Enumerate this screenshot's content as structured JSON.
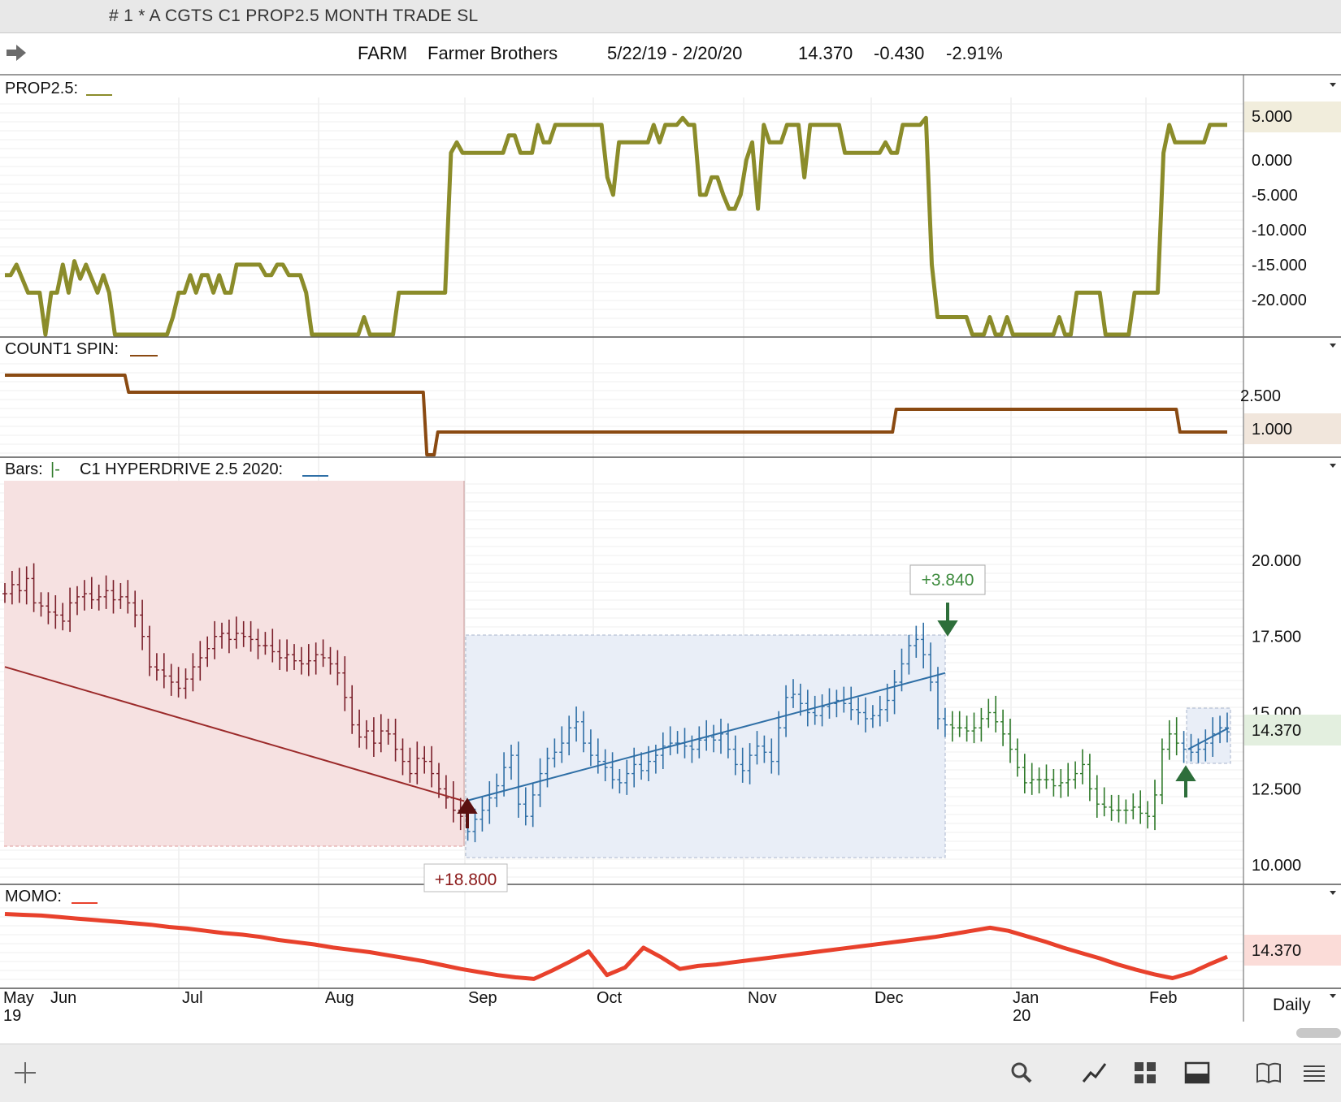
{
  "window": {
    "title": "# 1 * A CGTS  C1 PROP2.5 MONTH TRADE SL"
  },
  "header": {
    "symbol": "FARM",
    "name": "Farmer Brothers",
    "date_range": "5/22/19 - 2/20/20",
    "last": "14.370",
    "change": "-0.430",
    "pct_change": "-2.91%",
    "nav_icon": "right-arrow-icon"
  },
  "colors": {
    "prop": "#8b8c2a",
    "count": "#8a4a12",
    "bars_short": "#7a1f2a",
    "bars_long": "#2f6fa6",
    "bars_flat": "#2f7a2a",
    "momo": "#e8412c",
    "short_zone": "#f6e1e1",
    "long_zone": "#e9eef7"
  },
  "panels": {
    "prop": {
      "label": "PROP2.5:",
      "ticks": [
        "5.000",
        "0.000",
        "-5.000",
        "-10.000",
        "-15.000",
        "-20.000"
      ],
      "last_badge": "5.000"
    },
    "count": {
      "label": "COUNT1 SPIN:",
      "ticks": [
        "2.500"
      ],
      "last_badge": "1.000"
    },
    "bars": {
      "label": "Bars:",
      "label2": "C1 HYPERDRIVE 2.5 2020:",
      "ticks": [
        "20.000",
        "17.500",
        "15.000",
        "12.500",
        "10.000"
      ],
      "last_badge": "14.370",
      "annot_short": "+18.800",
      "annot_long": "+3.840"
    },
    "momo": {
      "label": "MOMO:",
      "last_badge": "14.370"
    }
  },
  "xaxis": {
    "months": [
      "May",
      "Jun",
      "Jul",
      "Aug",
      "Sep",
      "Oct",
      "Nov",
      "Dec",
      "Jan",
      "Feb"
    ],
    "years": [
      "19",
      "20"
    ],
    "period": "Daily"
  },
  "chart_data": [
    {
      "type": "line",
      "title": "PROP2.5",
      "ylim": [
        -25,
        8
      ],
      "x_start": "2019-05-22",
      "x_end": "2020-02-20",
      "series": [
        {
          "values": [
            -16.5,
            -16.5,
            -15,
            -17,
            -19,
            -19,
            -19,
            -25,
            -19,
            -19,
            -15,
            -19,
            -14.5,
            -17,
            -15,
            -17,
            -19,
            -16.5,
            -19,
            -25,
            -25,
            -25,
            -25,
            -25,
            -25,
            -25,
            -25,
            -25,
            -25,
            -22.5,
            -19,
            -19,
            -16.5,
            -19,
            -16.5,
            -16.5,
            -19,
            -16.5,
            -19,
            -19,
            -15,
            -15,
            -15,
            -15,
            -15,
            -16.5,
            -16.5,
            -15,
            -15,
            -16.5,
            -16.5,
            -16.5,
            -19,
            -25,
            -25,
            -25,
            -25,
            -25,
            -25,
            -25,
            -25,
            -25,
            -22.5,
            -25,
            -25,
            -25,
            -25,
            -25,
            -19,
            -19,
            -19,
            -19,
            -19,
            -19,
            -19,
            -19,
            -19,
            1,
            2.5,
            1,
            1,
            1,
            1,
            1,
            1,
            1,
            1,
            3.5,
            3.5,
            1,
            1,
            1,
            5,
            2.5,
            2.5,
            5,
            5,
            5,
            5,
            5,
            5,
            5,
            5,
            5,
            -2.5,
            -5,
            2.5,
            2.5,
            2.5,
            2.5,
            2.5,
            2.5,
            5,
            2.5,
            5,
            5,
            5,
            6,
            5,
            5,
            -5,
            -5,
            -2.5,
            -2.5,
            -5,
            -7,
            -7,
            -5,
            0,
            2.5,
            -7,
            5,
            2.5,
            2.5,
            2.5,
            5,
            5,
            5,
            -2.5,
            5,
            5,
            5,
            5,
            5,
            5,
            1,
            1,
            1,
            1,
            1,
            1,
            1,
            2.5,
            1,
            1,
            5,
            5,
            5,
            5,
            6,
            -15,
            -22.5,
            -22.5,
            -22.5,
            -22.5,
            -22.5,
            -22.5,
            -25,
            -25,
            -25,
            -22.5,
            -25,
            -25,
            -22.5,
            -25,
            -25,
            -25,
            -25,
            -25,
            -25,
            -25,
            -25,
            -22.5,
            -25,
            -25,
            -19,
            -19,
            -19,
            -19,
            -19,
            -25,
            -25,
            -25,
            -25,
            -25,
            -19,
            -19,
            -19,
            -19,
            -19,
            1,
            5,
            2.5,
            2.5,
            2.5,
            2.5,
            2.5,
            2.5,
            5,
            5,
            5,
            5
          ]
        }
      ]
    },
    {
      "type": "line",
      "title": "COUNT1 SPIN",
      "ylim": [
        0,
        4
      ],
      "series": [
        {
          "values": [
            3.5,
            3.5,
            3.5,
            3.5,
            3.5,
            3.5,
            3.5,
            3.5,
            3.5,
            3.5,
            3.5,
            3.5,
            3.5,
            3.5,
            3.5,
            3.5,
            3.5,
            3.5,
            3.5,
            3.5,
            3.5,
            3.5,
            3.5,
            3.5,
            3.5,
            3.5,
            3.5,
            3.5,
            3.5,
            3.5,
            3.5,
            3.5,
            3.5,
            3.5,
            2.75,
            2.75,
            2.75,
            2.75,
            2.75,
            2.75,
            2.75,
            2.75,
            2.75,
            2.75,
            2.75,
            2.75,
            2.75,
            2.75,
            2.75,
            2.75,
            2.75,
            2.75,
            2.75,
            2.75,
            2.75,
            2.75,
            2.75,
            2.75,
            2.75,
            2.75,
            2.75,
            2.75,
            2.75,
            2.75,
            2.75,
            2.75,
            2.75,
            2.75,
            2.75,
            2.75,
            2.75,
            2.75,
            2.75,
            2.75,
            2.75,
            2.75,
            2.75,
            2.75,
            2.75,
            2.75,
            2.75,
            2.75,
            2.75,
            2.75,
            2.75,
            2.75,
            2.75,
            2.75,
            2.75,
            2.75,
            2.75,
            2.75,
            2.75,
            2.75,
            2.75,
            2.75,
            2.75,
            2.75,
            2.75,
            2.75,
            2.75,
            2.75,
            2.75,
            2.75,
            2.75,
            2.75,
            2.75,
            2.75,
            2.75,
            2.75,
            2.75,
            2.75,
            2.75,
            2.75,
            2.75,
            2.75,
            0,
            0,
            0,
            1,
            1,
            1,
            1,
            1,
            1,
            1,
            1,
            1,
            1,
            1,
            1,
            1,
            1,
            1,
            1,
            1,
            1,
            1,
            1,
            1,
            1,
            1,
            1,
            1,
            1,
            1,
            1,
            1,
            1,
            1,
            1,
            1,
            1,
            1,
            1,
            1,
            1,
            1,
            1,
            1,
            1,
            1,
            1,
            1,
            1,
            1,
            1,
            1,
            1,
            1,
            1,
            1,
            1,
            1,
            1,
            1,
            1,
            1,
            1,
            1,
            1,
            1,
            1,
            1,
            1,
            1,
            1,
            1,
            1,
            1,
            1,
            1,
            1,
            1,
            1,
            1,
            1,
            1,
            1,
            1,
            1,
            1,
            1,
            1,
            1,
            1,
            1,
            1,
            1,
            1,
            1,
            1,
            1,
            1,
            1,
            1,
            1,
            1,
            1,
            1,
            1,
            1,
            1,
            1,
            1,
            1,
            1,
            1,
            1,
            1,
            1,
            1,
            1,
            1,
            1,
            1,
            1,
            1,
            1,
            1,
            1,
            1,
            1,
            1,
            1,
            2,
            2,
            2,
            2,
            2,
            2,
            2,
            2,
            2,
            2,
            2,
            2,
            2,
            2,
            2,
            2,
            2,
            2,
            2,
            2,
            2,
            2,
            2,
            2,
            2,
            2,
            2,
            2,
            2,
            2,
            2,
            2,
            2,
            2,
            2,
            2,
            2,
            2,
            2,
            2,
            2,
            2,
            2,
            2,
            2,
            2,
            2,
            2,
            2,
            2,
            2,
            2,
            2,
            2,
            2,
            2,
            2,
            2,
            2,
            2,
            2,
            2,
            2,
            2,
            2,
            2,
            2,
            2,
            2,
            2,
            2,
            2,
            2,
            2,
            2,
            2,
            2,
            2,
            1,
            1,
            1,
            1,
            1,
            1,
            1,
            1,
            1,
            1,
            1,
            1,
            1,
            1
          ]
        }
      ]
    },
    {
      "type": "bar",
      "title": "Bars",
      "ylim": [
        9.5,
        22.5
      ],
      "series": [
        {
          "name": "close",
          "values": [
            18.9,
            19.2,
            19.0,
            19.4,
            18.6,
            18.5,
            18.3,
            18.2,
            18.0,
            18.6,
            18.8,
            18.9,
            18.7,
            18.8,
            19.0,
            18.7,
            18.8,
            18.6,
            18.2,
            17.5,
            16.5,
            16.4,
            16.2,
            16.0,
            15.8,
            16.1,
            16.5,
            16.8,
            17.1,
            17.5,
            17.6,
            17.4,
            17.6,
            17.5,
            17.4,
            17.2,
            17.2,
            17.0,
            16.8,
            16.9,
            16.7,
            16.6,
            16.7,
            16.9,
            16.8,
            16.6,
            16.3,
            15.5,
            14.6,
            14.2,
            14.4,
            14.0,
            14.4,
            14.3,
            13.8,
            13.4,
            13.0,
            13.5,
            13.4,
            13.0,
            12.5,
            12.2,
            11.8,
            11.6,
            11.1,
            11.5,
            11.8,
            12.2,
            12.6,
            13.2,
            13.6,
            12.0,
            11.6,
            12.3,
            13.0,
            13.5,
            13.7,
            14.0,
            14.5,
            14.7,
            14.0,
            13.6,
            13.4,
            13.2,
            12.8,
            12.7,
            13.0,
            13.3,
            13.1,
            13.4,
            13.6,
            13.9,
            14.0,
            14.0,
            13.9,
            13.8,
            14.1,
            14.2,
            14.1,
            14.3,
            13.8,
            13.3,
            13.1,
            13.6,
            13.9,
            13.7,
            13.4,
            14.5,
            15.5,
            15.6,
            15.3,
            15.0,
            14.9,
            15.2,
            15.3,
            15.4,
            15.3,
            15.1,
            15.0,
            14.8,
            14.9,
            15.1,
            15.4,
            16.0,
            16.6,
            17.2,
            17.4,
            16.9,
            16.0,
            14.8,
            14.6,
            14.5,
            14.5,
            14.4,
            14.5,
            14.8,
            15.0,
            14.7,
            14.3,
            13.8,
            13.2,
            12.7,
            12.8,
            12.8,
            12.8,
            12.6,
            12.7,
            12.8,
            13.0,
            13.3,
            12.5,
            12.0,
            11.9,
            11.8,
            11.8,
            11.8,
            11.9,
            11.7,
            11.6,
            12.3,
            13.8,
            14.3,
            14.0,
            13.8,
            13.7,
            13.8,
            14.0,
            14.3,
            14.5,
            14.37
          ]
        },
        {
          "name": "trend_short",
          "values": [
            16.5,
            12.1
          ]
        },
        {
          "name": "trend_long",
          "values": [
            12.1,
            16.3
          ]
        },
        {
          "name": "trend_recent",
          "values": [
            13.8,
            14.5
          ]
        }
      ]
    },
    {
      "type": "line",
      "title": "MOMO",
      "ylim": [
        0,
        10
      ],
      "series": [
        {
          "values": [
            9.2,
            9.1,
            9.0,
            8.8,
            8.6,
            8.4,
            8.2,
            8.0,
            7.8,
            7.5,
            7.3,
            7.0,
            6.7,
            6.5,
            6.2,
            5.8,
            5.5,
            5.2,
            4.8,
            4.5,
            4.2,
            3.8,
            3.4,
            3.0,
            2.5,
            2.0,
            1.6,
            1.2,
            0.9,
            0.7,
            1.8,
            3.0,
            4.3,
            1.2,
            2.2,
            4.8,
            3.5,
            2.0,
            2.4,
            2.6,
            2.9,
            3.2,
            3.5,
            3.8,
            4.1,
            4.4,
            4.7,
            5.0,
            5.3,
            5.6,
            5.9,
            6.2,
            6.6,
            7.0,
            7.4,
            7.0,
            6.3,
            5.6,
            4.8,
            4.1,
            3.4,
            2.6,
            1.9,
            1.3,
            0.8,
            1.5,
            2.6,
            3.6
          ]
        }
      ]
    }
  ]
}
